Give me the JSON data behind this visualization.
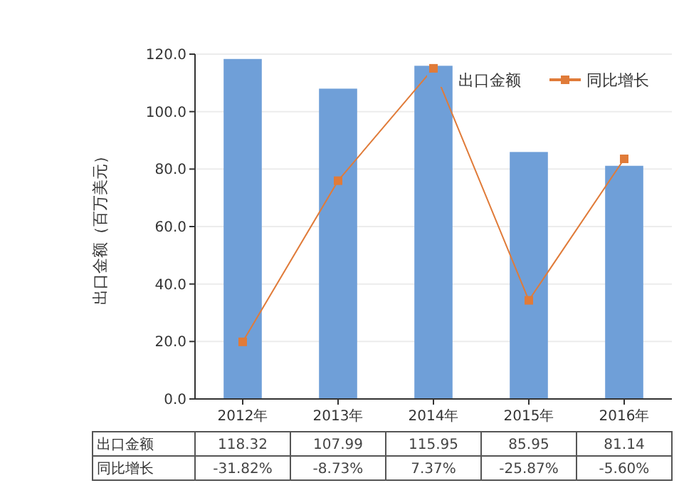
{
  "chart_data": {
    "type": "bar",
    "ylabel": "出口金额（百万美元）",
    "categories": [
      "2012年",
      "2013年",
      "2014年",
      "2015年",
      "2016年"
    ],
    "series": [
      {
        "name": "出口金额",
        "color": "#6f9fd8",
        "values": [
          118.32,
          107.99,
          115.95,
          85.95,
          81.14
        ],
        "value_labels": [
          "118.32",
          "107.99",
          "115.95",
          "85.95",
          "81.14"
        ]
      },
      {
        "name": "同比增长",
        "type": "line",
        "axis": "y2",
        "color": "#e07b39",
        "values": [
          -31.82,
          -8.73,
          7.37,
          -25.87,
          -5.6
        ],
        "value_labels": [
          "-31.82%",
          "-8.73%",
          "7.37%",
          "-25.87%",
          "-5.60%"
        ]
      }
    ],
    "ylim": [
      0,
      120
    ],
    "yticks": [
      {
        "value": 0,
        "label": "0.0"
      },
      {
        "value": 20,
        "label": "20.0"
      },
      {
        "value": 40,
        "label": "40.0"
      },
      {
        "value": 60,
        "label": "60.0"
      },
      {
        "value": 80,
        "label": "80.0"
      },
      {
        "value": 100,
        "label": "100.0"
      },
      {
        "value": 120,
        "label": "120.0"
      }
    ],
    "y2lim": [
      -40,
      9.4
    ],
    "grid": "y",
    "legend": "top right",
    "marker": "square",
    "line_style": "solid"
  }
}
